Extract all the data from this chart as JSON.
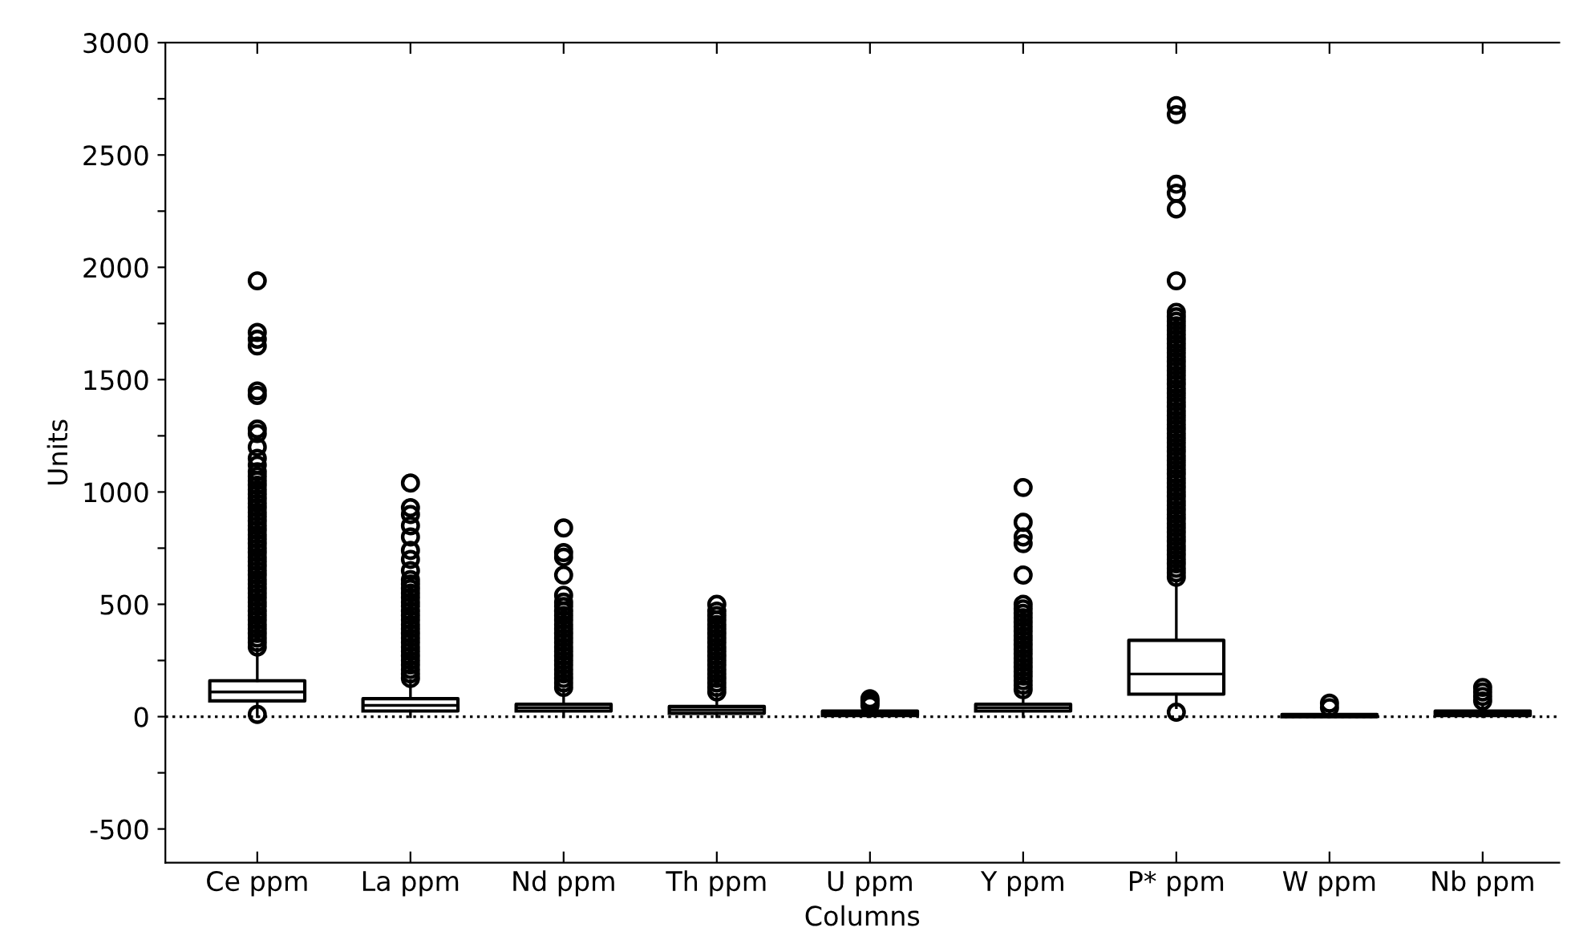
{
  "chart_data": {
    "type": "box",
    "xlabel": "Columns",
    "ylabel": "Units",
    "categories": [
      "Ce ppm",
      "La ppm",
      "Nd ppm",
      "Th ppm",
      "U ppm",
      "Y ppm",
      "P* ppm",
      "W ppm",
      "Nb ppm"
    ],
    "ylim": [
      -650,
      3000
    ],
    "yticks": [
      -500,
      {
        "value": -250,
        "label": null
      },
      0,
      {
        "value": 250,
        "label": null
      },
      500,
      {
        "value": 750,
        "label": null
      },
      1000,
      {
        "value": 1250,
        "label": null
      },
      1500,
      {
        "value": 1750,
        "label": null
      },
      2000,
      {
        "value": 2250,
        "label": null
      },
      2500,
      {
        "value": 2750,
        "label": null
      },
      3000
    ],
    "grid": false,
    "ref_lines": [
      {
        "axis": "y",
        "value": 0,
        "color": "#000000",
        "line_style": "dotted"
      }
    ],
    "boxes": [
      {
        "low": 0,
        "q1": 70,
        "median": 110,
        "q3": 160,
        "high": 300,
        "outliers": [
          10,
          310,
          330,
          350,
          370,
          390,
          410,
          430,
          450,
          470,
          490,
          510,
          530,
          550,
          570,
          590,
          610,
          630,
          650,
          670,
          690,
          710,
          730,
          750,
          770,
          790,
          810,
          830,
          850,
          870,
          890,
          910,
          930,
          950,
          970,
          990,
          1010,
          1030,
          1050,
          1070,
          1090,
          1120,
          1150,
          1200,
          1260,
          1280,
          1430,
          1450,
          1650,
          1680,
          1710,
          1940
        ]
      },
      {
        "low": 0,
        "q1": 25,
        "median": 50,
        "q3": 80,
        "high": 160,
        "outliers": [
          170,
          190,
          210,
          230,
          250,
          270,
          290,
          310,
          330,
          350,
          370,
          390,
          410,
          430,
          450,
          470,
          490,
          510,
          530,
          550,
          570,
          590,
          610,
          650,
          700,
          740,
          800,
          850,
          900,
          930,
          1040
        ]
      },
      {
        "low": 0,
        "q1": 25,
        "median": 40,
        "q3": 55,
        "high": 120,
        "outliers": [
          130,
          150,
          170,
          190,
          210,
          230,
          250,
          270,
          290,
          310,
          330,
          350,
          370,
          390,
          410,
          430,
          450,
          470,
          490,
          510,
          540,
          630,
          710,
          730,
          840
        ]
      },
      {
        "low": 0,
        "q1": 15,
        "median": 30,
        "q3": 45,
        "high": 100,
        "outliers": [
          110,
          130,
          150,
          170,
          190,
          210,
          230,
          250,
          270,
          290,
          310,
          330,
          350,
          370,
          390,
          410,
          430,
          450,
          470,
          500
        ]
      },
      {
        "low": 0,
        "q1": 5,
        "median": 15,
        "q3": 25,
        "high": 45,
        "outliers": [
          50,
          60,
          70,
          80
        ]
      },
      {
        "low": 0,
        "q1": 25,
        "median": 40,
        "q3": 55,
        "high": 110,
        "outliers": [
          120,
          140,
          160,
          180,
          200,
          220,
          240,
          260,
          280,
          300,
          320,
          340,
          360,
          380,
          400,
          420,
          440,
          460,
          480,
          500,
          630,
          770,
          800,
          865,
          1020
        ]
      },
      {
        "low": 40,
        "q1": 100,
        "median": 190,
        "q3": 340,
        "high": 600,
        "outliers": [
          20,
          620,
          640,
          660,
          680,
          700,
          720,
          740,
          760,
          780,
          800,
          820,
          840,
          860,
          880,
          900,
          920,
          940,
          960,
          980,
          1000,
          1020,
          1040,
          1060,
          1080,
          1100,
          1120,
          1140,
          1160,
          1180,
          1200,
          1220,
          1240,
          1260,
          1280,
          1300,
          1320,
          1340,
          1360,
          1380,
          1400,
          1420,
          1440,
          1460,
          1480,
          1500,
          1520,
          1540,
          1560,
          1580,
          1600,
          1620,
          1640,
          1660,
          1680,
          1700,
          1720,
          1740,
          1760,
          1780,
          1800,
          1940,
          2260,
          2330,
          2370,
          2680,
          2720
        ]
      },
      {
        "low": 0,
        "q1": 0,
        "median": 5,
        "q3": 10,
        "high": 20,
        "outliers": [
          40,
          60
        ]
      },
      {
        "low": 0,
        "q1": 5,
        "median": 15,
        "q3": 25,
        "high": 50,
        "outliers": [
          70,
          90,
          110,
          130
        ]
      }
    ]
  }
}
